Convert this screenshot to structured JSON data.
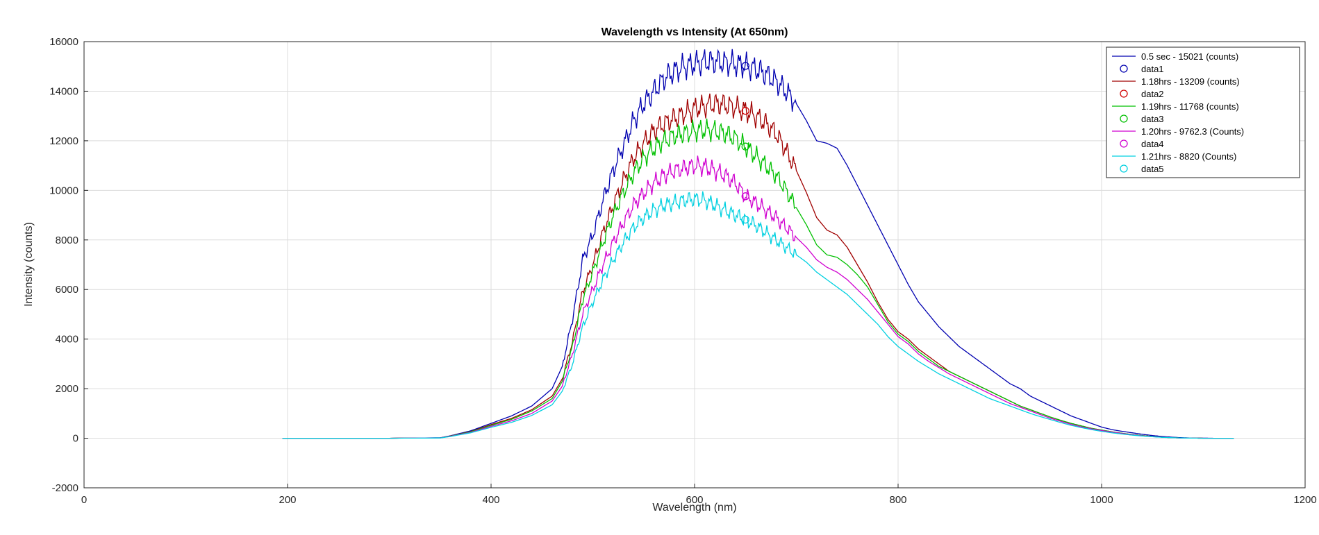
{
  "chart_data": {
    "type": "line",
    "title": "Wavelength vs Intensity (At 650nm)",
    "xlabel": "Wavelength (nm)",
    "ylabel": "Intensity (counts)",
    "xlim": [
      0,
      1200
    ],
    "ylim": [
      -2000,
      16000
    ],
    "xticks": [
      0,
      200,
      400,
      600,
      800,
      1000,
      1200
    ],
    "yticks": [
      -2000,
      0,
      2000,
      4000,
      6000,
      8000,
      10000,
      12000,
      14000,
      16000
    ],
    "grid": true,
    "legend_position": "top-right",
    "x": [
      195,
      250,
      300,
      350,
      360,
      380,
      400,
      420,
      440,
      460,
      470,
      480,
      490,
      500,
      510,
      520,
      530,
      540,
      550,
      560,
      570,
      580,
      590,
      600,
      610,
      620,
      630,
      640,
      650,
      660,
      670,
      680,
      690,
      700,
      710,
      720,
      730,
      740,
      750,
      760,
      770,
      780,
      790,
      800,
      810,
      820,
      830,
      840,
      850,
      860,
      870,
      880,
      890,
      900,
      910,
      920,
      930,
      940,
      950,
      960,
      970,
      980,
      990,
      1000,
      1010,
      1020,
      1030,
      1040,
      1050,
      1060,
      1070,
      1080,
      1090,
      1100,
      1110,
      1120,
      1130
    ],
    "series": [
      {
        "name": "0.5 sec - 15021 (counts)",
        "color": "#0000b0",
        "values": [
          0,
          0,
          0,
          20,
          100,
          300,
          600,
          900,
          1300,
          2000,
          2900,
          4800,
          7200,
          8200,
          9600,
          10800,
          11800,
          12800,
          13500,
          14000,
          14500,
          14800,
          15000,
          15100,
          15200,
          15200,
          15150,
          15100,
          15021,
          14900,
          14700,
          14400,
          14000,
          13500,
          12800,
          12000,
          11900,
          11700,
          11000,
          10200,
          9400,
          8600,
          7800,
          7000,
          6200,
          5500,
          5000,
          4500,
          4100,
          3700,
          3400,
          3100,
          2800,
          2500,
          2200,
          2000,
          1700,
          1500,
          1300,
          1100,
          900,
          750,
          600,
          450,
          350,
          280,
          220,
          160,
          110,
          70,
          40,
          20,
          10,
          5,
          0,
          0,
          0
        ]
      },
      {
        "name": "1.18hrs - 13209 (counts)",
        "color": "#a00000",
        "values": [
          0,
          0,
          0,
          15,
          90,
          270,
          550,
          800,
          1150,
          1700,
          2400,
          3900,
          5900,
          7000,
          8300,
          9400,
          10400,
          11300,
          11900,
          12400,
          12700,
          12900,
          13100,
          13300,
          13400,
          13500,
          13450,
          13350,
          13209,
          13000,
          12700,
          12300,
          11600,
          10800,
          9900,
          8900,
          8400,
          8200,
          7700,
          7000,
          6300,
          5500,
          4800,
          4300,
          4000,
          3600,
          3300,
          3000,
          2700,
          2500,
          2300,
          2100,
          1900,
          1700,
          1500,
          1300,
          1150,
          1000,
          850,
          720,
          600,
          500,
          400,
          330,
          260,
          200,
          150,
          110,
          70,
          40,
          20,
          10,
          5,
          0,
          0,
          0,
          0
        ]
      },
      {
        "name": "1.19hrs - 11768 (counts)",
        "color": "#00c000",
        "values": [
          0,
          0,
          0,
          15,
          85,
          260,
          520,
          760,
          1100,
          1600,
          2300,
          3700,
          5600,
          6700,
          7900,
          9000,
          9900,
          10700,
          11300,
          11700,
          12000,
          12200,
          12300,
          12400,
          12450,
          12400,
          12300,
          12100,
          11768,
          11400,
          11000,
          10600,
          10000,
          9300,
          8600,
          7800,
          7400,
          7300,
          7000,
          6600,
          6100,
          5400,
          4700,
          4200,
          3900,
          3500,
          3200,
          2900,
          2700,
          2500,
          2300,
          2100,
          1900,
          1700,
          1500,
          1300,
          1150,
          1000,
          850,
          720,
          600,
          500,
          400,
          330,
          260,
          200,
          150,
          110,
          70,
          40,
          20,
          10,
          5,
          0,
          0,
          0,
          0
        ]
      },
      {
        "name": "1.20hrs - 9762.3 (Counts)",
        "color": "#d000d0",
        "values": [
          0,
          0,
          0,
          15,
          80,
          240,
          480,
          700,
          1000,
          1500,
          2100,
          3400,
          5000,
          6000,
          7000,
          7900,
          8700,
          9400,
          9900,
          10300,
          10600,
          10800,
          10900,
          11000,
          10950,
          10800,
          10600,
          10300,
          9762,
          9500,
          9200,
          8900,
          8500,
          8100,
          7700,
          7200,
          6900,
          6700,
          6400,
          6000,
          5600,
          5100,
          4600,
          4100,
          3800,
          3400,
          3100,
          2850,
          2600,
          2400,
          2200,
          2000,
          1800,
          1600,
          1400,
          1250,
          1100,
          950,
          800,
          680,
          560,
          460,
          380,
          310,
          250,
          190,
          140,
          100,
          65,
          40,
          20,
          10,
          5,
          0,
          0,
          0,
          0
        ]
      },
      {
        "name": "1.21hrs - 8820 (Counts)",
        "color": "#00d0e0",
        "values": [
          0,
          0,
          0,
          10,
          70,
          220,
          440,
          640,
          920,
          1350,
          1900,
          3000,
          4500,
          5500,
          6400,
          7200,
          7900,
          8500,
          8900,
          9200,
          9400,
          9500,
          9600,
          9650,
          9600,
          9400,
          9200,
          9000,
          8820,
          8600,
          8300,
          8000,
          7700,
          7400,
          7100,
          6700,
          6400,
          6100,
          5800,
          5400,
          5000,
          4600,
          4100,
          3700,
          3400,
          3100,
          2850,
          2600,
          2400,
          2200,
          2000,
          1800,
          1600,
          1450,
          1300,
          1150,
          1000,
          870,
          750,
          630,
          520,
          430,
          350,
          280,
          220,
          170,
          125,
          90,
          60,
          35,
          20,
          10,
          5,
          0,
          0,
          0,
          0
        ]
      }
    ],
    "markers": [
      {
        "name": "data1",
        "color": "#0000b0",
        "x": 650,
        "y": 15021
      },
      {
        "name": "data2",
        "color": "#d00000",
        "x": 650,
        "y": 13209
      },
      {
        "name": "data3",
        "color": "#00c000",
        "x": 650,
        "y": 11768
      },
      {
        "name": "data4",
        "color": "#d000d0",
        "x": 650,
        "y": 9762.3
      },
      {
        "name": "data5",
        "color": "#00d0e0",
        "x": 650,
        "y": 8820
      }
    ]
  }
}
